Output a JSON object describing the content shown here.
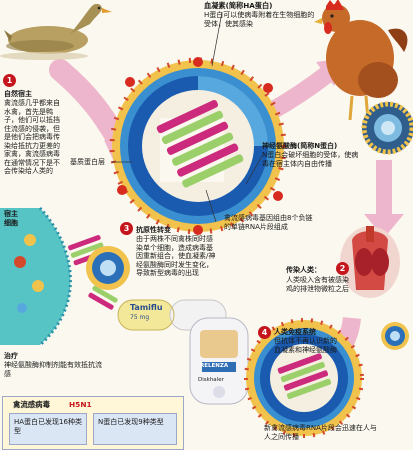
{
  "colors": {
    "virus_core": "#1a5bb0",
    "virus_shell": "#f1c24c",
    "rna_stripe": "#cc2a7c",
    "arrow_pink": "#eeb6cc",
    "duck_body": "#b8a062",
    "hen_body": "#c56a28",
    "badge_red": "#c4161c"
  },
  "labels": {
    "ha_title": "血凝素(简称HA蛋白)",
    "ha_desc": "H蛋白可以使病毒附着在生物细胞的受体，使其感染",
    "matrix": "基质蛋白层",
    "na_title": "神经氨酸酶(简称N蛋白)",
    "na_desc": "N蛋白会破坏细胞的受体，使病毒在宿主体内自由传播",
    "rna": "禽流感病毒基因组由8个负链的单链RNA片段组成"
  },
  "steps": [
    {
      "num": "1",
      "title": "自然宿主",
      "desc": "禽流感几乎都来自水禽，首先是鸭子，他们可以抵挡住流感的侵袭，但是他们会把病毒传染给抵抗力更差的家禽，禽流感病毒在通常情况下是不会传染给人类的"
    },
    {
      "num": "2",
      "title": "传染人类：",
      "desc": "人类吸入含有被感染鸡的排泄物微粒之后"
    },
    {
      "num": "3",
      "title": "抗原性转变",
      "desc": "由于两株不同禽株同时感染单个细胞，造成病毒基因重新组合，使血凝素/神经氨酸酶同时发生变化，导致新型病毒的出现"
    },
    {
      "num": "4",
      "title": "人类免疫系统",
      "desc": "但抗体不再认识新的血凝素和神经氨酸酶"
    }
  ],
  "host_cell": "宿主细胞",
  "treatment": {
    "title": "治疗",
    "desc": "神经氨酸酶抑制剂能有效抵抗流感"
  },
  "drug": {
    "brand": "Tamiflu",
    "dose": "75 mg",
    "maker": "RELENZA",
    "device": "Diskhaler"
  },
  "new_virus_note": "新禽流感病毒RNA片段会迅速在人与人之间传播",
  "legend": {
    "title_prefix": "禽流感病毒",
    "title_code": "H5N1",
    "ha_types": "HA蛋白已发现16种类型",
    "n_types": "N蛋白已发现9种类型"
  }
}
